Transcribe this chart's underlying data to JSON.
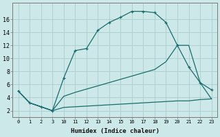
{
  "xlabel": "Humidex (Indice chaleur)",
  "bg_color": "#cce8e8",
  "grid_color": "#aacccc",
  "line_color": "#1a6b6b",
  "x_labels": [
    "0",
    "1",
    "2",
    "3",
    "10",
    "11",
    "12",
    "13",
    "14",
    "15",
    "16",
    "17",
    "18",
    "19",
    "20",
    "21",
    "22",
    "23"
  ],
  "line1_y": [
    5.0,
    3.2,
    2.6,
    2.0,
    7.0,
    11.2,
    11.5,
    14.3,
    15.5,
    16.3,
    17.2,
    17.2,
    17.0,
    15.5,
    12.0,
    8.7,
    6.3,
    5.2
  ],
  "line2_y": [
    5.0,
    3.2,
    2.6,
    2.0,
    4.2,
    4.8,
    5.3,
    5.8,
    6.3,
    6.8,
    7.3,
    7.8,
    8.3,
    9.5,
    12.0,
    12.0,
    6.3,
    3.8
  ],
  "line3_y": [
    5.0,
    3.2,
    2.6,
    2.0,
    2.5,
    2.6,
    2.7,
    2.8,
    2.9,
    3.0,
    3.1,
    3.2,
    3.3,
    3.4,
    3.5,
    3.5,
    3.7,
    3.8
  ],
  "ylim": [
    1.0,
    18.5
  ],
  "yticks": [
    2,
    4,
    6,
    8,
    10,
    12,
    14,
    16
  ]
}
